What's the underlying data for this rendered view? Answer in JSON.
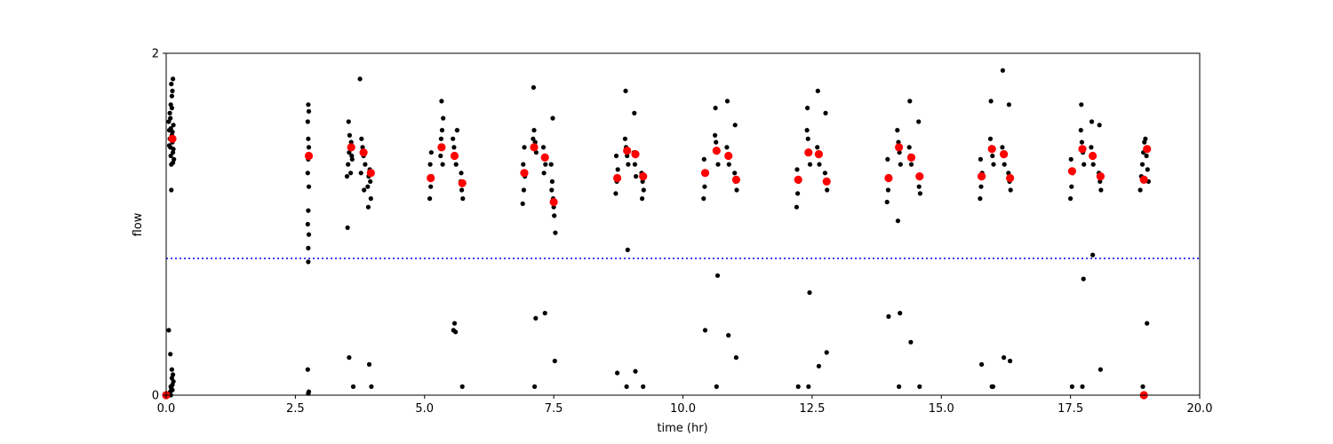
{
  "chart_data": {
    "type": "scatter",
    "title": "",
    "xlabel": "time (hr)",
    "ylabel": "flow",
    "xlim": [
      0,
      20
    ],
    "ylim": [
      0,
      2
    ],
    "xticks": [
      0,
      2.5,
      5,
      7.5,
      10,
      12.5,
      15,
      17.5,
      20
    ],
    "xtick_labels": [
      "0.0",
      "2.5",
      "5.0",
      "7.5",
      "10.0",
      "12.5",
      "15.0",
      "17.5",
      "20.0"
    ],
    "yticks": [
      0,
      2
    ],
    "ytick_labels": [
      "0",
      "2"
    ],
    "grid": false,
    "threshold_line": {
      "y": 0.8,
      "style": "dotted",
      "color": "#0000ff"
    },
    "colors": {
      "raw": "#000000",
      "summary": "#ff0000",
      "threshold": "#0000ff"
    },
    "series": [
      {
        "kind": "raw",
        "x": [
          0.05,
          0.06,
          0.07,
          0.08,
          0.09,
          0.1,
          0.11,
          0.12,
          0.13,
          0.14,
          0.15,
          0.07,
          0.09,
          0.11,
          0.13,
          0.1,
          0.12,
          0.08,
          0.11,
          0.14,
          0.06,
          0.09,
          0.12,
          0.1,
          0.13,
          0.05,
          0.08,
          0.11,
          0.14,
          0.09,
          0.12,
          0.05,
          0.08,
          0.1,
          0.12,
          0.11,
          0.13,
          0.09,
          2.75,
          2.76,
          2.74,
          2.75,
          2.76,
          2.75,
          2.74,
          2.76,
          2.75,
          2.74,
          2.76,
          2.75,
          2.75,
          2.74,
          2.76,
          2.75,
          3.5,
          3.52,
          3.54,
          3.56,
          3.58,
          3.6,
          3.55,
          3.53,
          3.57,
          3.59,
          3.51,
          3.54,
          3.62,
          3.75,
          3.78,
          3.8,
          3.82,
          3.85,
          3.77,
          3.83,
          3.9,
          3.92,
          3.94,
          3.96,
          3.91,
          3.95,
          3.93,
          3.97,
          5.1,
          5.12,
          5.14,
          5.11,
          5.13,
          5.3,
          5.32,
          5.34,
          5.36,
          5.31,
          5.35,
          5.33,
          5.55,
          5.57,
          5.59,
          5.61,
          5.63,
          5.56,
          5.6,
          5.58,
          5.7,
          5.72,
          5.74,
          5.71,
          5.73,
          6.9,
          6.92,
          6.94,
          6.91,
          6.93,
          7.1,
          7.12,
          7.14,
          7.16,
          7.11,
          7.15,
          7.13,
          7.3,
          7.32,
          7.34,
          7.31,
          7.33,
          7.45,
          7.47,
          7.49,
          7.51,
          7.53,
          7.46,
          7.5,
          7.48,
          7.52,
          8.7,
          8.72,
          8.74,
          8.71,
          8.73,
          8.88,
          8.9,
          8.92,
          8.94,
          8.89,
          8.93,
          8.91,
          9.05,
          9.07,
          9.09,
          9.06,
          9.08,
          9.2,
          9.22,
          9.24,
          9.21,
          9.23,
          10.4,
          10.42,
          10.44,
          10.41,
          10.43,
          10.62,
          10.64,
          10.66,
          10.68,
          10.63,
          10.67,
          10.65,
          10.85,
          10.87,
          10.89,
          10.86,
          10.88,
          11.0,
          11.02,
          11.04,
          11.01,
          11.03,
          12.2,
          12.22,
          12.24,
          12.21,
          12.23,
          12.4,
          12.42,
          12.44,
          12.46,
          12.41,
          12.45,
          12.43,
          12.6,
          12.62,
          12.64,
          12.61,
          12.63,
          12.75,
          12.77,
          12.79,
          12.76,
          12.78,
          13.95,
          13.97,
          13.99,
          13.96,
          13.98,
          14.15,
          14.17,
          14.19,
          14.21,
          14.16,
          14.2,
          14.18,
          14.38,
          14.4,
          14.42,
          14.39,
          14.41,
          14.55,
          14.57,
          14.59,
          14.56,
          14.58,
          15.75,
          15.77,
          15.79,
          15.76,
          15.78,
          15.95,
          15.97,
          15.99,
          16.01,
          15.96,
          16.0,
          15.98,
          16.18,
          16.2,
          16.22,
          16.19,
          16.21,
          16.3,
          16.32,
          16.34,
          16.31,
          16.33,
          17.5,
          17.52,
          17.54,
          17.51,
          17.53,
          17.7,
          17.72,
          17.74,
          17.76,
          17.71,
          17.75,
          17.73,
          17.9,
          17.92,
          17.94,
          17.91,
          17.93,
          18.05,
          18.07,
          18.09,
          18.06,
          18.08,
          18.85,
          18.87,
          18.89,
          18.91,
          18.93,
          18.95,
          18.97,
          18.99,
          19.01,
          18.9,
          18.94,
          18.98
        ],
        "y": [
          1.6,
          1.55,
          1.5,
          1.45,
          1.4,
          1.35,
          1.52,
          1.48,
          1.42,
          1.58,
          1.38,
          1.65,
          1.7,
          1.75,
          1.85,
          1.82,
          1.78,
          1.62,
          1.68,
          1.44,
          1.46,
          1.56,
          1.54,
          1.2,
          1.36,
          0.38,
          0.24,
          0.15,
          0.08,
          0.05,
          0.03,
          0.01,
          0.02,
          0.04,
          0.06,
          0.1,
          0.12,
          0.0,
          1.7,
          1.66,
          1.6,
          1.5,
          1.45,
          1.38,
          1.3,
          1.22,
          1.08,
          1.0,
          0.94,
          0.86,
          0.78,
          0.15,
          0.02,
          0.01,
          1.28,
          1.35,
          1.42,
          1.45,
          1.48,
          1.38,
          1.52,
          1.6,
          1.3,
          1.4,
          0.98,
          0.22,
          0.05,
          1.85,
          1.5,
          1.45,
          1.4,
          1.35,
          1.3,
          1.2,
          1.22,
          1.28,
          1.32,
          1.15,
          1.1,
          1.25,
          0.18,
          0.05,
          1.15,
          1.22,
          1.28,
          1.35,
          1.42,
          1.45,
          1.5,
          1.55,
          1.62,
          1.4,
          1.35,
          1.72,
          1.5,
          1.45,
          1.4,
          1.35,
          1.55,
          0.38,
          0.37,
          0.42,
          1.25,
          1.2,
          1.15,
          1.3,
          0.05,
          1.12,
          1.2,
          1.28,
          1.35,
          1.45,
          1.5,
          1.55,
          1.48,
          1.42,
          1.8,
          0.45,
          0.05,
          1.45,
          1.4,
          1.35,
          1.3,
          0.48,
          1.35,
          1.25,
          1.15,
          1.05,
          0.95,
          1.2,
          1.1,
          1.62,
          0.2,
          1.18,
          1.25,
          1.32,
          1.4,
          0.13,
          1.5,
          1.45,
          1.4,
          1.35,
          1.78,
          0.85,
          0.05,
          1.42,
          1.35,
          1.28,
          1.65,
          0.14,
          1.3,
          1.25,
          1.2,
          1.15,
          0.05,
          1.15,
          1.22,
          1.3,
          1.38,
          0.38,
          1.52,
          1.48,
          1.42,
          1.35,
          1.68,
          0.7,
          0.05,
          1.45,
          1.4,
          1.35,
          1.72,
          0.35,
          1.3,
          1.25,
          1.2,
          1.58,
          0.22,
          1.1,
          1.18,
          1.25,
          1.32,
          0.05,
          1.55,
          1.5,
          1.42,
          1.35,
          1.68,
          0.6,
          0.05,
          1.45,
          1.4,
          1.35,
          1.78,
          0.17,
          1.3,
          1.25,
          1.2,
          1.65,
          0.25,
          1.13,
          1.2,
          1.28,
          1.38,
          0.46,
          1.55,
          1.48,
          1.42,
          1.35,
          1.02,
          0.48,
          0.05,
          1.45,
          1.4,
          1.35,
          1.72,
          0.31,
          1.28,
          1.22,
          1.18,
          1.6,
          0.05,
          1.15,
          1.22,
          1.3,
          1.38,
          0.18,
          1.5,
          1.45,
          1.4,
          1.35,
          1.72,
          0.05,
          0.05,
          1.45,
          1.4,
          1.35,
          1.9,
          0.22,
          1.3,
          1.25,
          1.2,
          1.7,
          0.2,
          1.15,
          1.22,
          1.3,
          1.38,
          0.05,
          1.55,
          1.48,
          1.42,
          1.35,
          1.7,
          0.68,
          0.05,
          1.45,
          1.4,
          1.35,
          1.6,
          0.82,
          1.3,
          1.25,
          1.2,
          1.58,
          0.15,
          1.2,
          1.28,
          1.35,
          1.42,
          1.48,
          1.5,
          1.4,
          1.32,
          1.25,
          0.05,
          0.0,
          0.42
        ]
      },
      {
        "kind": "summary",
        "x": [
          0.12,
          2.76,
          3.58,
          3.82,
          3.96,
          5.12,
          5.33,
          5.58,
          5.73,
          6.93,
          7.12,
          7.33,
          7.5,
          8.73,
          8.92,
          9.08,
          9.23,
          10.43,
          10.65,
          10.88,
          11.03,
          12.23,
          12.43,
          12.63,
          12.78,
          13.98,
          14.18,
          14.42,
          14.58,
          15.78,
          15.98,
          16.21,
          16.33,
          17.53,
          17.73,
          17.93,
          18.08,
          18.92,
          18.98
        ],
        "y": [
          1.5,
          1.4,
          1.45,
          1.42,
          1.3,
          1.27,
          1.45,
          1.4,
          1.24,
          1.3,
          1.45,
          1.39,
          1.13,
          1.27,
          1.43,
          1.41,
          1.28,
          1.3,
          1.43,
          1.4,
          1.26,
          1.26,
          1.42,
          1.41,
          1.25,
          1.27,
          1.45,
          1.39,
          1.28,
          1.28,
          1.44,
          1.41,
          1.27,
          1.31,
          1.44,
          1.4,
          1.28,
          1.26,
          1.44
        ]
      },
      {
        "kind": "summary-zero",
        "x": [
          0.0,
          18.92
        ],
        "y": [
          0.0,
          0.0
        ]
      }
    ]
  }
}
